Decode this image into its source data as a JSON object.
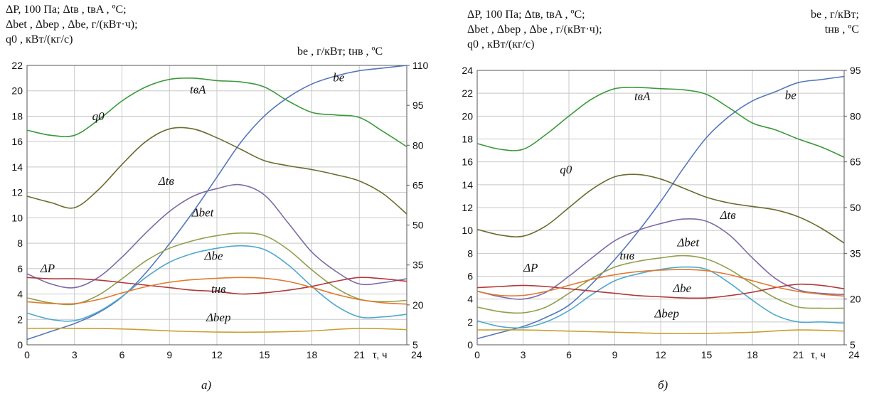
{
  "chart_data": [
    {
      "type": "line",
      "panel_label": "а)",
      "left_axis_header": [
        "ΔP, 100 Па; Δtв , tвA , ºC;",
        "Δbet , Δbep , Δbe,  г/(кВт·ч);",
        "q0 , кВт/(кг/с)"
      ],
      "right_axis_header": [
        "be , г/кВт; tнв , ºC"
      ],
      "x_axis_label": "τ, ч",
      "x_ticks": [
        "0",
        "3",
        "6",
        "9",
        "12",
        "15",
        "18",
        "21",
        "24"
      ],
      "xlim": [
        0,
        24
      ],
      "y_left_ticks": [
        "0",
        "2",
        "4",
        "6",
        "8",
        "10",
        "12",
        "14",
        "16",
        "18",
        "20",
        "22"
      ],
      "ylim_left": [
        0,
        22
      ],
      "y_right_ticks": [
        "5",
        "20",
        "35",
        "50",
        "65",
        "80",
        "95",
        "110"
      ],
      "ylim_right": [
        5,
        110
      ],
      "grid": true,
      "series": [
        {
          "name": "tвA",
          "axis": "left",
          "color": "#3a9a3a",
          "label_x": 10.8,
          "label_y": 19.8,
          "x": [
            0,
            1.5,
            3,
            4.5,
            6,
            7.5,
            9,
            10.5,
            12,
            13.5,
            15,
            16.5,
            18,
            19.5,
            21,
            22.5,
            24
          ],
          "y": [
            16.9,
            16.5,
            16.5,
            17.7,
            19.2,
            20.3,
            20.9,
            21.0,
            20.8,
            20.7,
            20.3,
            19.2,
            18.3,
            18.1,
            17.9,
            16.8,
            15.6
          ]
        },
        {
          "name": "be",
          "axis": "right",
          "color": "#5577bb",
          "label_x": 19.7,
          "label_y": 104,
          "x": [
            0,
            1.5,
            3,
            4.5,
            6,
            7.5,
            9,
            10.5,
            12,
            13.5,
            15,
            16.5,
            18,
            19.5,
            21,
            22.5,
            24
          ],
          "y": [
            7,
            10,
            13,
            17,
            23,
            32,
            43,
            55,
            68,
            81,
            91,
            98,
            103,
            106,
            108,
            109,
            110
          ]
        },
        {
          "name": "q0",
          "axis": "left",
          "color": "#6b6b2e",
          "label_x": 4.5,
          "label_y": 17.7,
          "x": [
            0,
            1.5,
            3,
            4.5,
            6,
            7.5,
            9,
            10.5,
            12,
            13.5,
            15,
            16.5,
            18,
            19.5,
            21,
            22.5,
            24
          ],
          "y": [
            11.7,
            11.2,
            10.8,
            12.2,
            14.2,
            16.0,
            17.0,
            17.0,
            16.3,
            15.4,
            14.5,
            14.1,
            13.8,
            13.4,
            12.9,
            11.9,
            10.3
          ]
        },
        {
          "name": "Δtв",
          "axis": "left",
          "color": "#7e6aa8",
          "label_x": 8.8,
          "label_y": 12.6,
          "x": [
            0,
            1.5,
            3,
            4.5,
            6,
            7.5,
            9,
            10.5,
            12,
            13.5,
            15,
            16.5,
            18,
            19.5,
            21,
            22.5,
            24
          ],
          "y": [
            5.6,
            4.8,
            4.5,
            5.3,
            6.9,
            8.8,
            10.5,
            11.7,
            12.3,
            12.6,
            11.8,
            9.6,
            7.3,
            5.8,
            4.8,
            4.9,
            5.2
          ]
        },
        {
          "name": "Δbet",
          "axis": "left",
          "color": "#8fa04a",
          "label_x": 11.1,
          "label_y": 10.1,
          "x": [
            0,
            1.5,
            3,
            4.5,
            6,
            7.5,
            9,
            10.5,
            12,
            13.5,
            15,
            16.5,
            18,
            19.5,
            21,
            22.5,
            24
          ],
          "y": [
            3.7,
            3.3,
            3.2,
            3.9,
            5.2,
            6.6,
            7.6,
            8.2,
            8.6,
            8.8,
            8.6,
            7.5,
            5.9,
            4.5,
            3.6,
            3.4,
            3.5
          ]
        },
        {
          "name": "Δbe",
          "axis": "left",
          "color": "#4fa8cc",
          "label_x": 11.8,
          "label_y": 6.7,
          "x": [
            0,
            1.5,
            3,
            4.5,
            6,
            7.5,
            9,
            10.5,
            12,
            13.5,
            15,
            16.5,
            18,
            19.5,
            21,
            22.5,
            24
          ],
          "y": [
            2.5,
            2.0,
            1.9,
            2.6,
            3.8,
            5.3,
            6.5,
            7.2,
            7.6,
            7.8,
            7.5,
            6.3,
            4.6,
            3.1,
            2.2,
            2.2,
            2.4
          ]
        },
        {
          "name": "ΔP",
          "axis": "left",
          "color": "#b03a3a",
          "label_x": 1.3,
          "label_y": 5.7,
          "x": [
            0,
            1.5,
            3,
            4.5,
            6,
            7.5,
            9,
            10.5,
            12,
            13.5,
            15,
            16.5,
            18,
            19.5,
            21,
            22.5,
            24
          ],
          "y": [
            5.3,
            5.2,
            5.2,
            5.1,
            4.9,
            4.7,
            4.5,
            4.3,
            4.2,
            4.0,
            4.1,
            4.3,
            4.6,
            5.0,
            5.3,
            5.2,
            5.0
          ]
        },
        {
          "name": "tнв",
          "axis": "right",
          "color": "#e07a30",
          "label_x": 12.1,
          "label_y": 24.5,
          "x": [
            0,
            1.5,
            3,
            4.5,
            6,
            7.5,
            9,
            10.5,
            12,
            13.5,
            15,
            16.5,
            18,
            19.5,
            21,
            22.5,
            24
          ],
          "y": [
            21.2,
            20.5,
            20.5,
            22.0,
            24.5,
            26.8,
            28.5,
            29.5,
            30.0,
            30.3,
            30.0,
            28.8,
            26.6,
            24.0,
            22.0,
            20.8,
            20.3
          ]
        },
        {
          "name": "Δbep",
          "axis": "left",
          "color": "#c9a030",
          "label_x": 12.1,
          "label_y": 1.85,
          "x": [
            0,
            3,
            6,
            9,
            12,
            15,
            18,
            21,
            24
          ],
          "y": [
            1.3,
            1.3,
            1.25,
            1.1,
            1.0,
            1.0,
            1.1,
            1.3,
            1.2
          ]
        }
      ]
    },
    {
      "type": "line",
      "panel_label": "б)",
      "left_axis_header": [
        "ΔP, 100 Па; Δtв, tвA , ºC;",
        "Δbet , Δbep , Δbe ,  г/(кВт·ч);",
        "q0 , кВт/(кг/с)"
      ],
      "right_axis_header": [
        "be , г/кВт;",
        "tнв , ºC"
      ],
      "x_axis_label": "τ, ч",
      "x_ticks": [
        "0",
        "3",
        "6",
        "9",
        "12",
        "15",
        "18",
        "21",
        "24"
      ],
      "xlim": [
        0,
        24
      ],
      "y_left_ticks": [
        "0",
        "2",
        "4",
        "6",
        "8",
        "10",
        "12",
        "14",
        "16",
        "18",
        "20",
        "22",
        "24"
      ],
      "ylim_left": [
        0,
        24
      ],
      "y_right_ticks": [
        "5",
        "20",
        "35",
        "50",
        "65",
        "80",
        "95"
      ],
      "ylim_right": [
        5,
        95
      ],
      "grid": true,
      "series": [
        {
          "name": "tвA",
          "axis": "left",
          "color": "#3a9a3a",
          "label_x": 10.8,
          "label_y": 21.4,
          "x": [
            0,
            1.5,
            3,
            4.5,
            6,
            7.5,
            9,
            10.5,
            12,
            13.5,
            15,
            16.5,
            18,
            19.5,
            21,
            22.5,
            24
          ],
          "y": [
            17.6,
            17.1,
            17.1,
            18.4,
            20.0,
            21.5,
            22.4,
            22.5,
            22.4,
            22.3,
            21.9,
            20.7,
            19.4,
            18.8,
            18.0,
            17.3,
            16.4
          ]
        },
        {
          "name": "be",
          "axis": "right",
          "color": "#5577bb",
          "label_x": 20.5,
          "label_y": 85.5,
          "x": [
            0,
            1.5,
            3,
            4.5,
            6,
            7.5,
            9,
            10.5,
            12,
            13.5,
            15,
            16.5,
            18,
            19.5,
            21,
            22.5,
            24
          ],
          "y": [
            7,
            9,
            11,
            14,
            18,
            25,
            33,
            42,
            52,
            63,
            73,
            80,
            85,
            88,
            91,
            92,
            93
          ]
        },
        {
          "name": "q0",
          "axis": "left",
          "color": "#6b6b2e",
          "label_x": 5.8,
          "label_y": 15.0,
          "x": [
            0,
            1.5,
            3,
            4.5,
            6,
            7.5,
            9,
            10.5,
            12,
            13.5,
            15,
            16.5,
            18,
            19.5,
            21,
            22.5,
            24
          ],
          "y": [
            10.1,
            9.6,
            9.5,
            10.4,
            12.0,
            13.6,
            14.7,
            14.9,
            14.5,
            13.7,
            12.9,
            12.4,
            12.1,
            11.8,
            11.2,
            10.2,
            8.9
          ]
        },
        {
          "name": "Δtв",
          "axis": "left",
          "color": "#7e6aa8",
          "label_x": 16.4,
          "label_y": 11.0,
          "x": [
            0,
            1.5,
            3,
            4.5,
            6,
            7.5,
            9,
            10.5,
            12,
            13.5,
            15,
            16.5,
            18,
            19.5,
            21,
            22.5,
            24
          ],
          "y": [
            4.7,
            4.2,
            4.0,
            4.6,
            6.0,
            7.6,
            9.1,
            10.0,
            10.6,
            11.0,
            10.8,
            9.6,
            7.6,
            5.8,
            4.8,
            4.5,
            4.4
          ]
        },
        {
          "name": "Δbet",
          "axis": "left",
          "color": "#8fa04a",
          "label_x": 13.8,
          "label_y": 8.6,
          "x": [
            0,
            1.5,
            3,
            4.5,
            6,
            7.5,
            9,
            10.5,
            12,
            13.5,
            15,
            16.5,
            18,
            19.5,
            21,
            22.5,
            24
          ],
          "y": [
            3.3,
            2.9,
            2.8,
            3.3,
            4.5,
            5.8,
            6.8,
            7.3,
            7.6,
            7.8,
            7.5,
            6.6,
            5.3,
            4.1,
            3.3,
            3.2,
            3.2
          ]
        },
        {
          "name": "Δbe",
          "axis": "left",
          "color": "#4fa8cc",
          "label_x": 13.4,
          "label_y": 4.6,
          "x": [
            0,
            1.5,
            3,
            4.5,
            6,
            7.5,
            9,
            10.5,
            12,
            13.5,
            15,
            16.5,
            18,
            19.5,
            21,
            22.5,
            24
          ],
          "y": [
            2.1,
            1.6,
            1.5,
            2.0,
            3.0,
            4.4,
            5.6,
            6.2,
            6.6,
            6.8,
            6.6,
            5.4,
            3.9,
            2.6,
            2.0,
            2.0,
            1.9
          ]
        },
        {
          "name": "ΔP",
          "axis": "left",
          "color": "#b03a3a",
          "label_x": 3.5,
          "label_y": 6.4,
          "x": [
            0,
            1.5,
            3,
            4.5,
            6,
            7.5,
            9,
            10.5,
            12,
            13.5,
            15,
            16.5,
            18,
            19.5,
            21,
            22.5,
            24
          ],
          "y": [
            5.0,
            5.1,
            5.2,
            5.1,
            4.9,
            4.7,
            4.5,
            4.3,
            4.2,
            4.1,
            4.1,
            4.3,
            4.6,
            5.0,
            5.3,
            5.2,
            4.9
          ]
        },
        {
          "name": "tнв",
          "axis": "right",
          "color": "#e07a30",
          "label_x": 9.8,
          "label_y": 33.0,
          "x": [
            0,
            1.5,
            3,
            4.5,
            6,
            7.5,
            9,
            10.5,
            12,
            13.5,
            15,
            16.5,
            18,
            19.5,
            21,
            22.5,
            24
          ],
          "y": [
            22.5,
            21.2,
            21.2,
            22.5,
            24.5,
            26.5,
            28.0,
            29.0,
            29.5,
            29.7,
            29.3,
            28.0,
            26.0,
            24.0,
            22.5,
            21.6,
            21.0
          ]
        },
        {
          "name": "Δbep",
          "axis": "left",
          "color": "#c9a030",
          "label_x": 12.4,
          "label_y": 2.4,
          "x": [
            0,
            3,
            6,
            9,
            12,
            15,
            18,
            21,
            24
          ],
          "y": [
            1.3,
            1.3,
            1.2,
            1.1,
            1.0,
            1.0,
            1.1,
            1.3,
            1.2
          ]
        }
      ]
    }
  ]
}
